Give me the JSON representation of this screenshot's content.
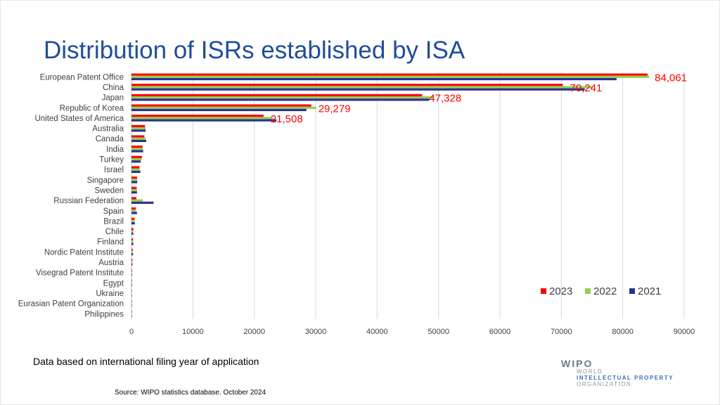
{
  "slide": {
    "title": "Distribution of ISRs established by ISA",
    "note": "Data based on international filing year of application",
    "source": "Source:  WIPO statistics database. October 2024",
    "logo": {
      "word": "WIPO",
      "lines": [
        "WORLD",
        "INTELLECTUAL PROPERTY",
        "ORGANIZATION"
      ]
    }
  },
  "chart_data": {
    "type": "bar",
    "orientation": "horizontal",
    "title": "",
    "xlabel": "",
    "ylabel": "",
    "xlim": [
      0,
      90000
    ],
    "xticks": [
      0,
      10000,
      20000,
      30000,
      40000,
      50000,
      60000,
      70000,
      80000,
      90000
    ],
    "grid": true,
    "legend": "right",
    "categories": [
      "European Patent Office",
      "China",
      "Japan",
      "Republic of Korea",
      "United States of America",
      "Australia",
      "Canada",
      "India",
      "Turkey",
      "Israel",
      "Singapore",
      "Sweden",
      "Russian Federation",
      "Spain",
      "Brazil",
      "Chile",
      "Finland",
      "Nordic Patent Institute",
      "Austria",
      "Visegrad Patent Institute",
      "Egypt",
      "Ukraine",
      "Eurasian Patent Organization",
      "Philippines"
    ],
    "series": [
      {
        "name": "2023",
        "color": "#ff0000",
        "values": [
          84061,
          70241,
          47328,
          29279,
          21508,
          2200,
          2100,
          1800,
          1700,
          1300,
          900,
          850,
          800,
          700,
          500,
          300,
          250,
          200,
          150,
          100,
          80,
          60,
          50,
          40
        ]
      },
      {
        "name": "2022",
        "color": "#92d050",
        "values": [
          84300,
          75100,
          49200,
          30100,
          23000,
          2300,
          2300,
          1850,
          1650,
          1350,
          950,
          900,
          1850,
          750,
          500,
          300,
          250,
          200,
          150,
          100,
          80,
          60,
          50,
          40
        ]
      },
      {
        "name": "2021",
        "color": "#2e3192",
        "values": [
          79000,
          73800,
          48500,
          28500,
          23600,
          2300,
          2400,
          1900,
          1500,
          1450,
          950,
          900,
          3600,
          900,
          550,
          300,
          300,
          250,
          150,
          100,
          80,
          70,
          50,
          40
        ]
      }
    ],
    "data_labels": [
      {
        "category": "European Patent Office",
        "text": "84,061"
      },
      {
        "category": "China",
        "text": "70,241"
      },
      {
        "category": "Japan",
        "text": "47,328"
      },
      {
        "category": "Republic of Korea",
        "text": "29,279"
      },
      {
        "category": "United States of America",
        "text": "21,508"
      }
    ],
    "label_color": "#ff0000"
  }
}
